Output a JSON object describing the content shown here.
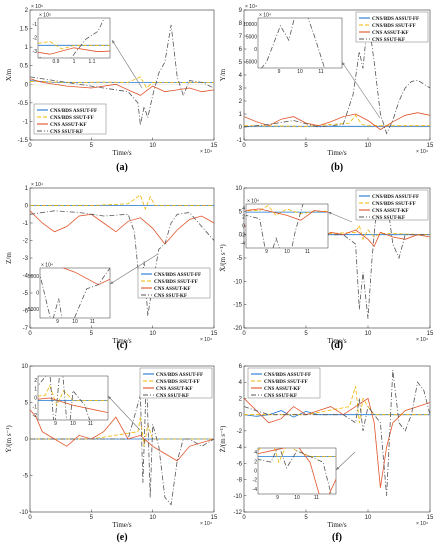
{
  "figure": {
    "colors": {
      "cns_bds_assut_ff": "#1f77d4",
      "cns_bds_ssut_ff": "#f0b400",
      "cns_assut_kf": "#e0542a",
      "cns_ssut_kf": "#555555",
      "arrow": "#777777"
    }
  },
  "chart_data": [
    {
      "id": "a",
      "type": "line",
      "caption": "(a)",
      "ylabel": "X/m",
      "xlabel": "Time/s",
      "x_exp": "× 10⁴",
      "y_exp": "× 10⁵",
      "xlim": [
        0,
        15
      ],
      "ylim": [
        -1.5,
        2
      ],
      "xticks": [
        "0",
        "5",
        "10",
        "15"
      ],
      "yticks": [
        "-1.5",
        "-1",
        "-0.5",
        "0",
        "0.5",
        "1",
        "1.5",
        "2"
      ],
      "legend": [
        "CNS/BDS ASSUT-FF",
        "CNS/BDS SSUT-FF",
        "CNS ASSUT-KF",
        "CNS SSUT-KF"
      ],
      "legend_pos": "lower-left",
      "inset": {
        "pos": "upper-left",
        "xticks": [
          "0.9",
          "1",
          "1.1"
        ],
        "yticks": [
          "-1",
          "-2",
          "-3"
        ],
        "y_exp": "× 10⁵"
      },
      "series": [
        {
          "name": "CNS/BDS ASSUT-FF",
          "color": "#1f77d4",
          "style": "solid",
          "x": [
            0,
            2,
            4,
            6,
            8,
            10,
            12,
            14,
            15
          ],
          "y": [
            0.1,
            0.05,
            0.05,
            0.05,
            0.05,
            0.05,
            0.05,
            0.05,
            0.05
          ]
        },
        {
          "name": "CNS/BDS SSUT-FF",
          "color": "#f0b400",
          "style": "dash",
          "x": [
            0,
            2,
            4,
            6,
            8,
            9,
            9.5,
            10,
            12,
            15
          ],
          "y": [
            0.08,
            0.06,
            0.05,
            0.06,
            0.05,
            0.2,
            -0.1,
            0.05,
            0.05,
            0.05
          ]
        },
        {
          "name": "CNS ASSUT-KF",
          "color": "#e0542a",
          "style": "solid",
          "x": [
            0,
            1,
            3,
            5,
            7,
            8,
            9,
            10,
            11,
            12,
            13,
            14,
            15
          ],
          "y": [
            0.15,
            0.05,
            -0.05,
            -0.1,
            0,
            -0.15,
            -0.3,
            -0.05,
            -0.2,
            -0.15,
            -0.1,
            -0.2,
            -0.15
          ]
        },
        {
          "name": "CNS SSUT-KF",
          "color": "#555555",
          "style": "dashdot",
          "x": [
            0,
            2,
            4,
            6,
            8,
            8.8,
            9,
            9.3,
            9.6,
            10,
            10.5,
            11,
            11.5,
            12,
            12.5,
            13,
            14,
            15
          ],
          "y": [
            0.2,
            0.1,
            0,
            -0.1,
            -0.2,
            -0.5,
            -1.1,
            -0.6,
            -0.9,
            -0.3,
            0.3,
            0.6,
            1.6,
            0.2,
            -0.3,
            0.1,
            0.05,
            -0.1
          ]
        }
      ]
    },
    {
      "id": "b",
      "type": "line",
      "caption": "(b)",
      "ylabel": "Y/m",
      "xlabel": "Time/s",
      "x_exp": "× 10⁴",
      "y_exp": "× 10⁴",
      "xlim": [
        0,
        15
      ],
      "ylim": [
        -1,
        9
      ],
      "xticks": [
        "0",
        "5",
        "10",
        "15"
      ],
      "yticks": [
        "-1",
        "0",
        "1",
        "2",
        "3",
        "4",
        "5",
        "6",
        "7",
        "8",
        "9"
      ],
      "legend": [
        "CNS/BDS ASSUT-FF",
        "CNS/BDS SSUT-FF",
        "CNS ASSUT-KF",
        "CNS SSUT-KF"
      ],
      "legend_pos": "top-right",
      "inset": {
        "pos": "upper-left",
        "xticks": [
          "9",
          "10",
          "11"
        ],
        "yticks": [
          "10000",
          "5000",
          "0",
          "-5000"
        ],
        "y_exp": "× 10⁴"
      },
      "series": [
        {
          "name": "CNS/BDS ASSUT-FF",
          "color": "#1f77d4",
          "style": "solid",
          "x": [
            0,
            5,
            10,
            15
          ],
          "y": [
            0.05,
            0.05,
            0.05,
            0.05
          ]
        },
        {
          "name": "CNS/BDS SSUT-FF",
          "color": "#f0b400",
          "style": "dash",
          "x": [
            0,
            5,
            8.5,
            9,
            9.5,
            10,
            15
          ],
          "y": [
            0.1,
            0.05,
            0.3,
            0.9,
            0.2,
            0.1,
            0.1
          ]
        },
        {
          "name": "CNS ASSUT-KF",
          "color": "#e0542a",
          "style": "solid",
          "x": [
            0,
            1,
            2,
            3,
            4,
            5,
            6,
            7,
            8,
            9,
            10,
            11,
            12,
            13,
            14,
            15
          ],
          "y": [
            0.8,
            0.4,
            0.1,
            0.6,
            0.8,
            0.3,
            0.1,
            0.4,
            0.8,
            1.0,
            0.5,
            -0.2,
            0.4,
            0.9,
            1.1,
            0.9
          ]
        },
        {
          "name": "CNS SSUT-KF",
          "color": "#555555",
          "style": "dashdot",
          "x": [
            0,
            2,
            4,
            6,
            8,
            8.8,
            9.3,
            9.6,
            10,
            10.5,
            11,
            11.5,
            12,
            12.5,
            13,
            13.5,
            14,
            14.5,
            15
          ],
          "y": [
            0,
            0.2,
            0.5,
            0,
            0.2,
            2.5,
            5.8,
            4.5,
            8.5,
            5,
            1,
            -0.5,
            0.5,
            2,
            3,
            3.5,
            3.6,
            3.3,
            3.0
          ]
        }
      ]
    },
    {
      "id": "c",
      "type": "line",
      "caption": "(c)",
      "ylabel": "Z/m",
      "xlabel": "Time/s",
      "x_exp": "× 10⁴",
      "y_exp": "× 10⁴",
      "xlim": [
        0,
        15
      ],
      "ylim": [
        -7,
        1
      ],
      "xticks": [
        "0",
        "5",
        "10",
        "15"
      ],
      "yticks": [
        "-7",
        "-6",
        "-5",
        "-4",
        "-3",
        "-2",
        "-1",
        "0",
        "1"
      ],
      "legend": [
        "CNS/BDS ASSUT-FF",
        "CNS/BDS SSUT-FF",
        "CNS ASSUT-KF",
        "CNS SSUT-KF"
      ],
      "legend_pos": "lower-right",
      "inset": {
        "pos": "lower-left",
        "xticks": [
          "9",
          "10",
          "11"
        ],
        "yticks": [
          "5000",
          "0",
          "-5000"
        ],
        "y_exp": "× 10⁴"
      },
      "series": [
        {
          "name": "CNS/BDS ASSUT-FF",
          "color": "#1f77d4",
          "style": "solid",
          "x": [
            0,
            5,
            10,
            15
          ],
          "y": [
            0,
            0,
            0,
            0
          ]
        },
        {
          "name": "CNS/BDS SSUT-FF",
          "color": "#f0b400",
          "style": "dash",
          "x": [
            0,
            5,
            8,
            9,
            9.4,
            9.8,
            10.2,
            15
          ],
          "y": [
            0,
            0,
            0.1,
            0.6,
            -0.2,
            0.5,
            0,
            0
          ]
        },
        {
          "name": "CNS ASSUT-KF",
          "color": "#e0542a",
          "style": "solid",
          "x": [
            0,
            1,
            2,
            3,
            4,
            5,
            6,
            7,
            8,
            9,
            10,
            11,
            12,
            13,
            14,
            15
          ],
          "y": [
            -0.3,
            -1.0,
            -1.5,
            -1.2,
            -0.6,
            -0.5,
            -1.0,
            -1.5,
            -0.9,
            -0.7,
            -1.3,
            -2.2,
            -1.4,
            -0.8,
            -0.6,
            -1.0
          ]
        },
        {
          "name": "CNS SSUT-KF",
          "color": "#555555",
          "style": "dashdot",
          "x": [
            0,
            2,
            4,
            6,
            8,
            8.5,
            9,
            9.3,
            9.6,
            10,
            10.5,
            11,
            11.5,
            12,
            13,
            14,
            15
          ],
          "y": [
            -0.5,
            -0.3,
            -0.4,
            -0.6,
            -0.5,
            -1.5,
            -5.0,
            -3.2,
            -6.3,
            -4.5,
            -2.5,
            -2.2,
            -1.0,
            -0.5,
            -0.4,
            -1.2,
            -2.0
          ]
        }
      ]
    },
    {
      "id": "d",
      "type": "line",
      "caption": "(d)",
      "ylabel": "Ẋ/(m s⁻¹)",
      "xlabel": "Time/s",
      "x_exp": "× 10⁴",
      "y_exp": "",
      "xlim": [
        0,
        15
      ],
      "ylim": [
        -20,
        10
      ],
      "xticks": [
        "0",
        "5",
        "10",
        "15"
      ],
      "yticks": [
        "-20",
        "-15",
        "-10",
        "-5",
        "0",
        "5",
        "10"
      ],
      "legend": [
        "CNS/BDS ASSUT-FF",
        "CNS/BDS SSUT-FF",
        "CNS ASSUT-KF",
        "CNS SSUT-KF"
      ],
      "legend_pos": "top-right",
      "inset": {
        "pos": "upper-left",
        "xticks": [
          "9",
          "10",
          "11"
        ],
        "yticks": [
          "4",
          "2",
          "0",
          "-2",
          "-4"
        ],
        "y_exp": "× 10⁴"
      },
      "series": [
        {
          "name": "CNS/BDS ASSUT-FF",
          "color": "#1f77d4",
          "style": "solid",
          "x": [
            0,
            5,
            10,
            15
          ],
          "y": [
            0,
            0,
            0,
            0
          ]
        },
        {
          "name": "CNS/BDS SSUT-FF",
          "color": "#f0b400",
          "style": "dash",
          "x": [
            0,
            5,
            9,
            9.3,
            9.6,
            10,
            10.5,
            11,
            15
          ],
          "y": [
            0,
            0,
            0.5,
            2,
            -1,
            1,
            -0.5,
            0.3,
            0
          ]
        },
        {
          "name": "CNS ASSUT-KF",
          "color": "#e0542a",
          "style": "solid",
          "x": [
            0,
            1,
            2,
            3,
            4,
            5,
            6,
            7,
            8,
            9,
            10,
            10.5,
            11,
            12,
            13,
            14,
            15
          ],
          "y": [
            2,
            0.5,
            0,
            1,
            0.5,
            0,
            -1,
            0.5,
            0,
            1,
            -1,
            -2.5,
            0.5,
            -0.5,
            -1,
            0,
            -0.5
          ]
        },
        {
          "name": "CNS SSUT-KF",
          "color": "#555555",
          "style": "dashdot",
          "x": [
            0,
            2,
            4,
            6,
            8,
            9,
            9.3,
            9.6,
            10,
            10.3,
            10.6,
            11,
            11.5,
            12,
            12.5,
            13,
            14,
            15
          ],
          "y": [
            0,
            0,
            0,
            0,
            0,
            -2,
            -16,
            -8,
            -18,
            -6,
            3,
            6,
            8,
            -2,
            -5,
            0,
            0,
            0
          ]
        }
      ]
    },
    {
      "id": "e",
      "type": "line",
      "caption": "(e)",
      "ylabel": "Ẏ/(m s⁻¹)",
      "xlabel": "Time/s",
      "x_exp": "× 10⁴",
      "y_exp": "",
      "xlim": [
        0,
        15
      ],
      "ylim": [
        -10,
        10
      ],
      "xticks": [
        "0",
        "5",
        "10",
        "15"
      ],
      "yticks": [
        "-10",
        "-5",
        "0",
        "5",
        "10"
      ],
      "legend": [
        "CNS/BDS ASSUT-FF",
        "CNS/BDS SSUT-FF",
        "CNS ASSUT-KF",
        "CNS SSUT-KF"
      ],
      "legend_pos": "top-right",
      "inset": {
        "pos": "upper-left",
        "xticks": [
          "9",
          "10",
          "11"
        ],
        "yticks": [
          "2",
          "1",
          "0",
          "-1",
          "-2"
        ],
        "y_exp": ""
      },
      "series": [
        {
          "name": "CNS/BDS ASSUT-FF",
          "color": "#1f77d4",
          "style": "solid",
          "x": [
            0,
            5,
            10,
            15
          ],
          "y": [
            0,
            0,
            0,
            0
          ]
        },
        {
          "name": "CNS/BDS SSUT-FF",
          "color": "#f0b400",
          "style": "dash",
          "x": [
            0,
            5,
            8.8,
            9,
            9.3,
            9.6,
            10,
            15
          ],
          "y": [
            0,
            0,
            1,
            3,
            -1,
            2,
            0,
            0
          ]
        },
        {
          "name": "CNS ASSUT-KF",
          "color": "#e0542a",
          "style": "solid",
          "x": [
            0,
            0.5,
            1,
            2,
            3,
            4,
            5,
            6,
            7,
            8,
            9,
            10,
            11,
            12,
            13,
            14,
            15
          ],
          "y": [
            4,
            3,
            1,
            0,
            -1,
            0.5,
            0,
            1,
            3,
            0,
            0.5,
            -1,
            -2,
            -3,
            -1,
            -0.5,
            0
          ]
        },
        {
          "name": "CNS SSUT-KF",
          "color": "#555555",
          "style": "dashdot",
          "x": [
            0,
            2,
            4,
            6,
            8,
            9,
            9.2,
            9.5,
            9.8,
            10,
            10.5,
            11,
            11.5,
            12,
            12.5,
            13,
            14,
            15
          ],
          "y": [
            0,
            0,
            0,
            0,
            0,
            6,
            -6,
            9,
            -8,
            2,
            -1,
            -8,
            -9,
            -3,
            0,
            0,
            -1,
            0
          ]
        }
      ]
    },
    {
      "id": "f",
      "type": "line",
      "caption": "(f)",
      "ylabel": "Ż/(m s⁻¹)",
      "xlabel": "Time/s",
      "x_exp": "× 10⁴",
      "y_exp": "",
      "xlim": [
        0,
        15
      ],
      "ylim": [
        -12,
        6
      ],
      "xticks": [
        "0",
        "5",
        "10",
        "15"
      ],
      "yticks": [
        "-12",
        "-10",
        "-8",
        "-6",
        "-4",
        "-2",
        "0",
        "2",
        "4",
        "6"
      ],
      "legend": [
        "CNS/BDS ASSUT-FF",
        "CNS/BDS SSUT-FF",
        "CNS ASSUT-KF",
        "CNS SSUT-KF"
      ],
      "legend_pos": "top-left",
      "inset": {
        "pos": "lower-left",
        "xticks": [
          "9",
          "10",
          "11"
        ],
        "yticks": [
          "4",
          "2",
          "0",
          "-2",
          "-4"
        ],
        "y_exp": ""
      },
      "series": [
        {
          "name": "CNS/BDS ASSUT-FF",
          "color": "#1f77d4",
          "style": "solid",
          "x": [
            0,
            1,
            2,
            3,
            4,
            5,
            6,
            7,
            8,
            9,
            10,
            15
          ],
          "y": [
            0,
            -0.2,
            0,
            0.5,
            -0.3,
            0.4,
            0,
            0,
            0,
            0,
            0,
            0
          ]
        },
        {
          "name": "CNS/BDS SSUT-FF",
          "color": "#f0b400",
          "style": "dash",
          "x": [
            0,
            5,
            8.5,
            9,
            9.3,
            9.6,
            10,
            10.5,
            15
          ],
          "y": [
            0,
            0,
            1,
            3.5,
            -1,
            2,
            1,
            0,
            0
          ]
        },
        {
          "name": "CNS ASSUT-KF",
          "color": "#e0542a",
          "style": "solid",
          "x": [
            0,
            1,
            2,
            3,
            4,
            5,
            6,
            7,
            8,
            9,
            10,
            10.5,
            11,
            11.5,
            12,
            13,
            14,
            15
          ],
          "y": [
            2,
            0.5,
            -1,
            -0.5,
            1,
            0,
            0.5,
            1,
            0,
            1,
            2,
            -1,
            -9,
            -4,
            -1,
            0.5,
            1,
            1.5
          ]
        },
        {
          "name": "CNS SSUT-KF",
          "color": "#555555",
          "style": "dashdot",
          "x": [
            0,
            2,
            4,
            6,
            8,
            9,
            9.3,
            9.6,
            10,
            10.5,
            11,
            11.5,
            12,
            12.5,
            13,
            13.5,
            14,
            14.5,
            15
          ],
          "y": [
            1,
            0,
            0,
            0,
            0,
            -1,
            2,
            -2,
            1,
            0,
            -1,
            -10,
            5.5,
            -1,
            -2,
            0,
            4,
            3,
            0
          ]
        }
      ]
    }
  ]
}
